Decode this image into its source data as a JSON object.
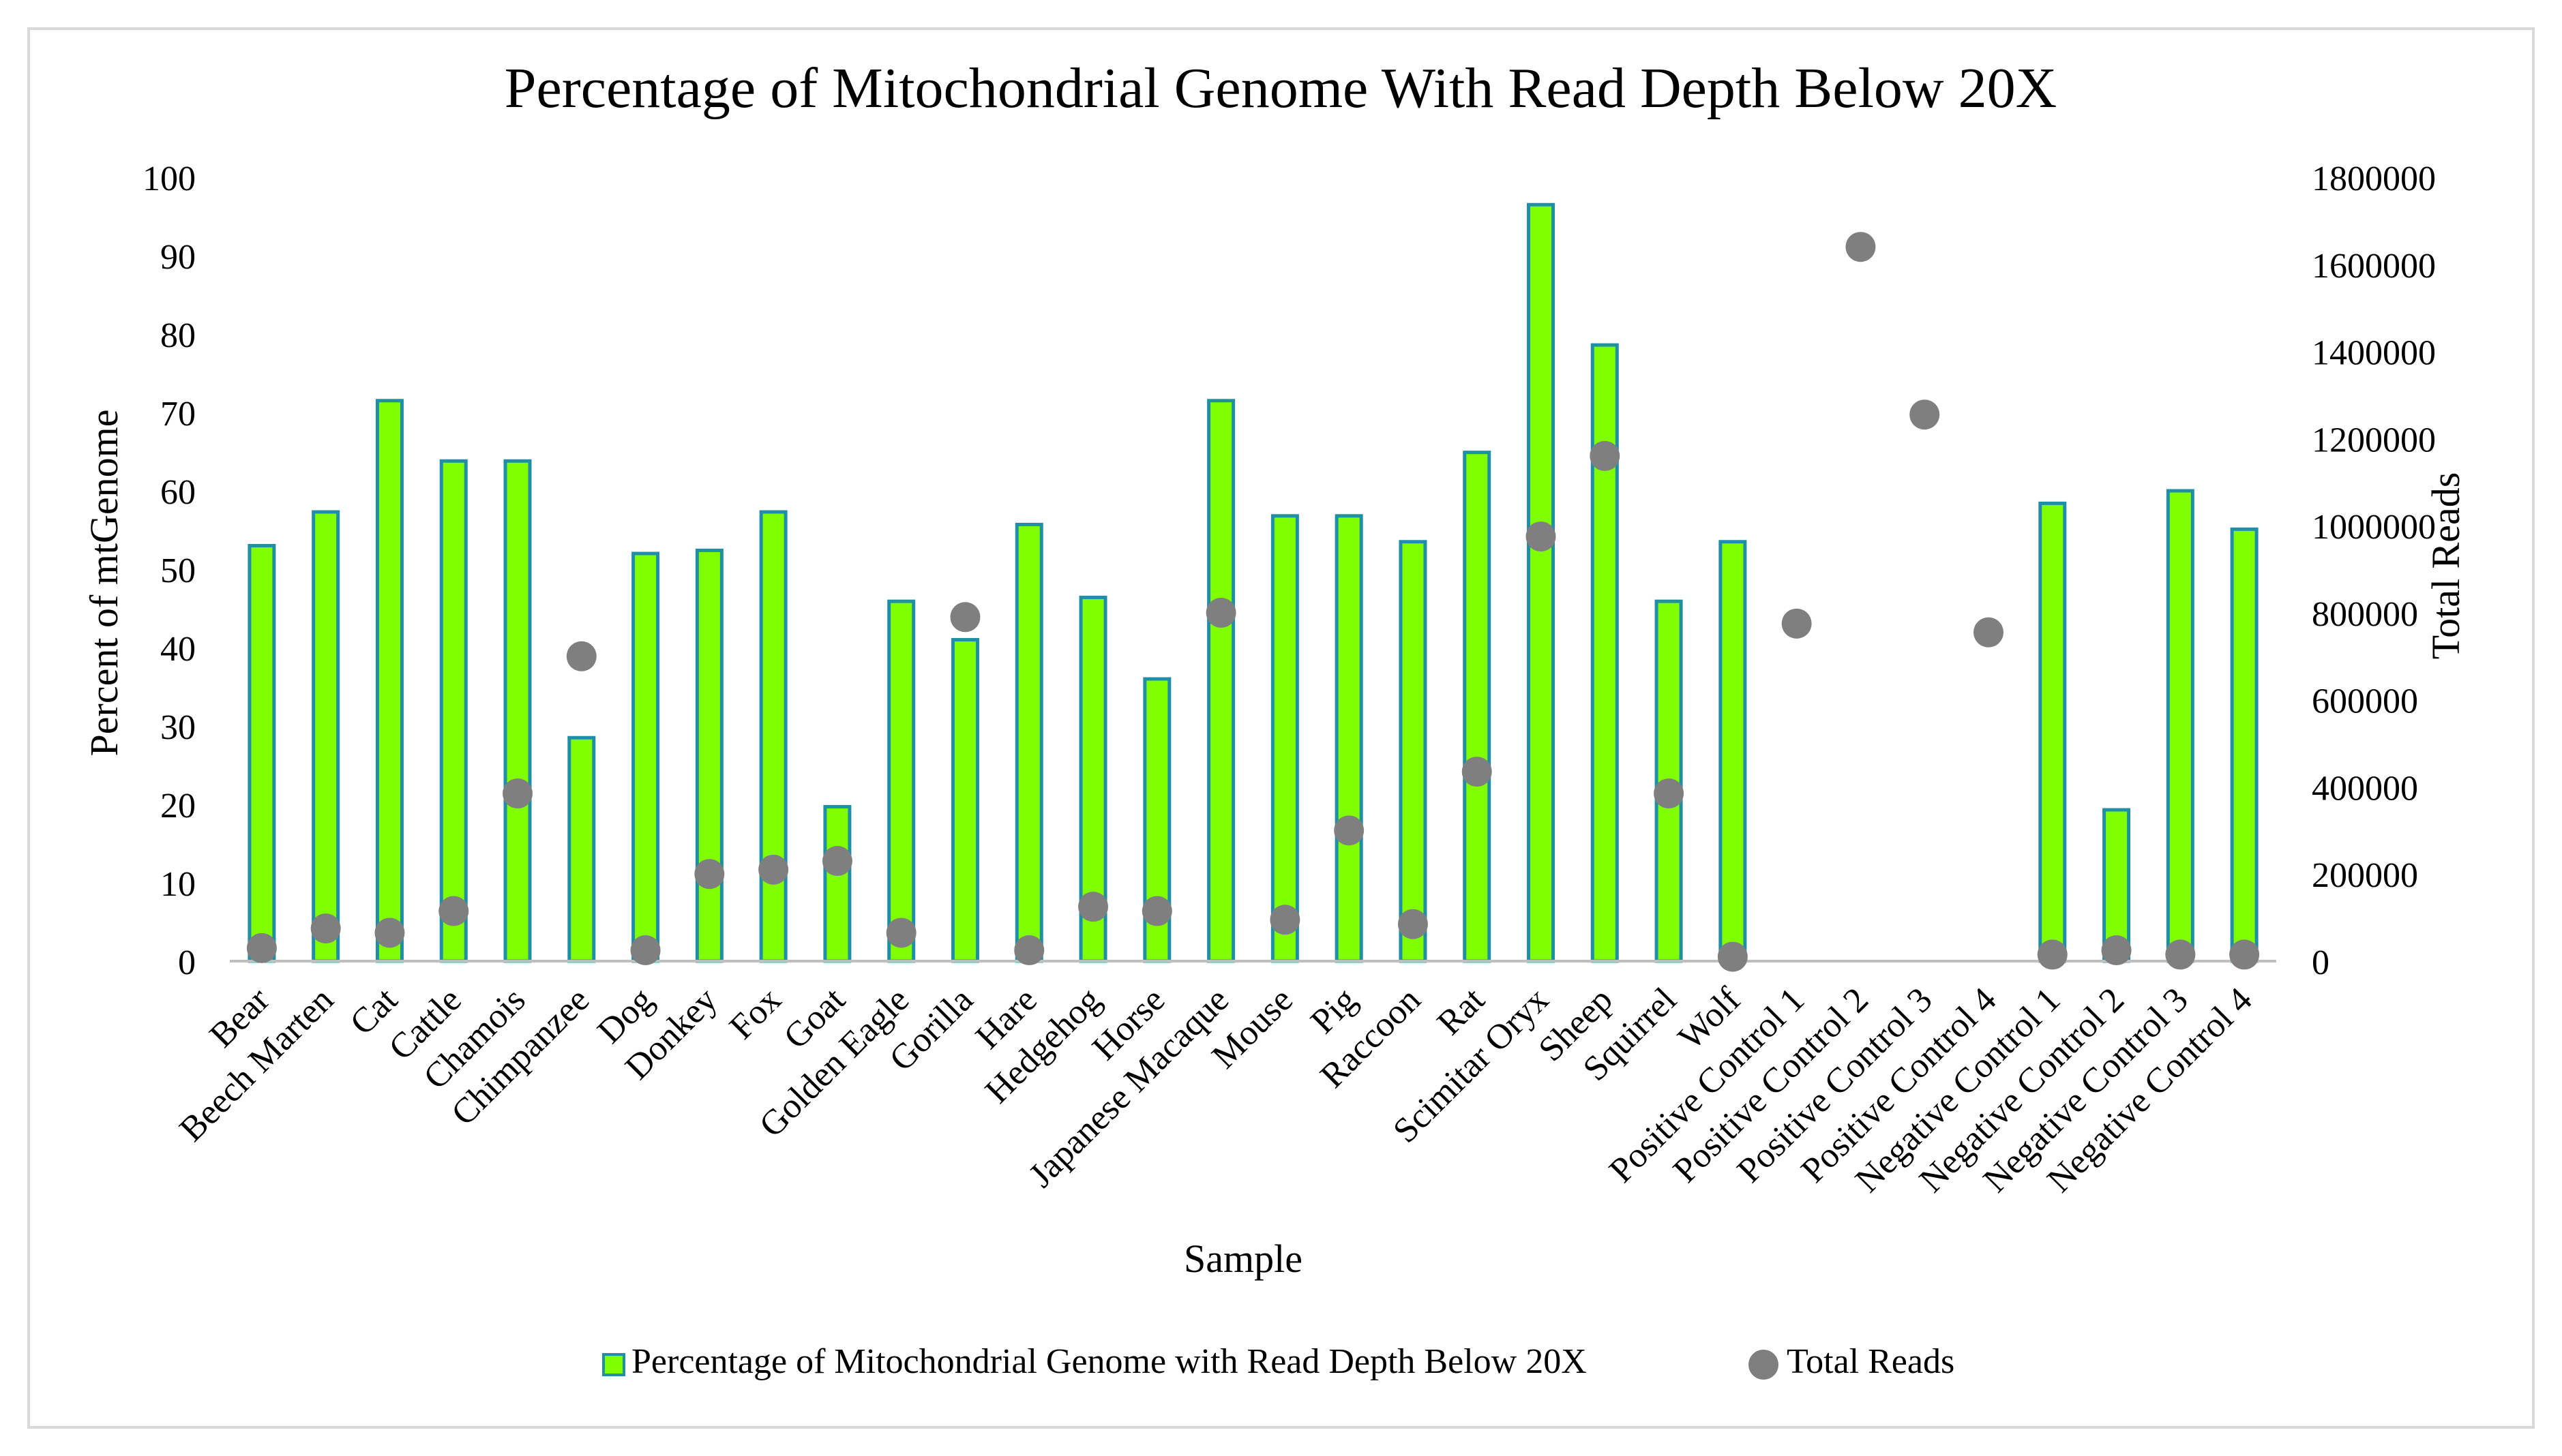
{
  "chart_data": {
    "type": "bar",
    "title": "Percentage of Mitochondrial Genome With Read Depth Below 20X",
    "xlabel": "Sample",
    "ylabel": "Percent of mtGenome",
    "y2label": "Total Reads",
    "ylim": [
      0,
      100
    ],
    "y2lim": [
      0,
      1800000
    ],
    "yticks": [
      "0",
      "10",
      "20",
      "30",
      "40",
      "50",
      "60",
      "70",
      "80",
      "90",
      "100"
    ],
    "y2ticks": [
      "0",
      "200000",
      "400000",
      "600000",
      "800000",
      "1000000",
      "1200000",
      "1400000",
      "1600000",
      "1800000"
    ],
    "grid": false,
    "legend_position": "bottom",
    "categories": [
      "Bear",
      "Beech Marten",
      "Cat",
      "Cattle",
      "Chamois",
      "Chimpanzee",
      "Dog",
      "Donkey",
      "Fox",
      "Goat",
      "Golden Eagle",
      "Gorilla",
      "Hare",
      "Hedgehog",
      "Horse",
      "Japanese Macaque",
      "Mouse",
      "Pig",
      "Raccoon",
      "Rat",
      "Scimitar Oryx",
      "Sheep",
      "Squirrel",
      "Wolf",
      "Positive Control 1",
      "Positive Control 2",
      "Positive Control 3",
      "Positive Control 4",
      "Negative Control 1",
      "Negative Control 2",
      "Negative Control 3",
      "Negative Control 4"
    ],
    "series": [
      {
        "name": "Percentage of Mitochondrial Genome with Read Depth Below 20X",
        "type": "bar",
        "axis": "left",
        "color": "#80FF00",
        "edge_color": "#1F8FA8",
        "values": [
          53,
          57.3,
          71.5,
          63.8,
          63.8,
          28.5,
          52,
          52.4,
          57.3,
          19.7,
          45.9,
          41,
          55.7,
          46.4,
          36,
          71.5,
          56.8,
          56.8,
          53.5,
          64.9,
          96.5,
          78.6,
          45.9,
          53.5,
          null,
          null,
          null,
          null,
          58.4,
          19.3,
          60,
          55.1
        ]
      },
      {
        "name": "Total Reads",
        "type": "scatter",
        "axis": "right",
        "color": "#7F7F7F",
        "values": [
          30000,
          75000,
          65000,
          115000,
          385000,
          700000,
          25000,
          200000,
          210000,
          230000,
          65000,
          790000,
          25000,
          125000,
          115000,
          800000,
          95000,
          300000,
          85000,
          435000,
          975000,
          1160000,
          385000,
          10000,
          775000,
          1640000,
          1255000,
          755000,
          15000,
          25000,
          15000,
          15000
        ]
      }
    ]
  },
  "colors": {
    "bar_fill": "#80FF00",
    "bar_edge": "#1F8FA8",
    "dot": "#7F7F7F",
    "axis": "#BFBFBF",
    "text": "#000000",
    "border": "#D9D9D9"
  }
}
